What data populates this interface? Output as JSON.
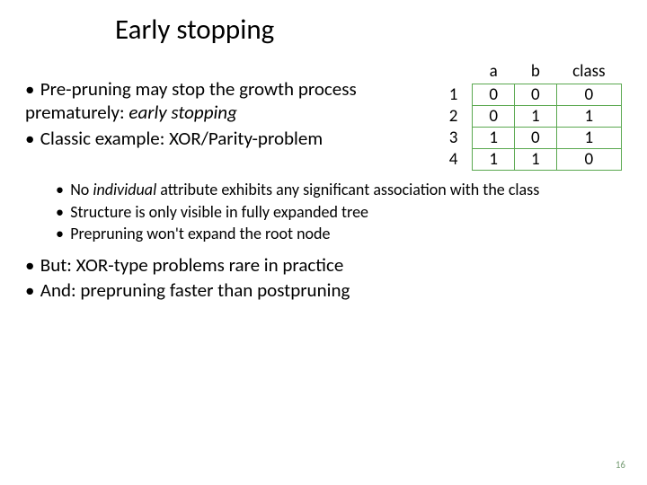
{
  "title": "Early stopping",
  "bullets_top": [
    {
      "text": "Pre-pruning may stop the growth process prematurely: ",
      "italic_suffix": "early stopping"
    },
    {
      "text": "Classic example: XOR/Parity-problem"
    }
  ],
  "table": {
    "columns": [
      "a",
      "b",
      "class"
    ],
    "row_labels": [
      "1",
      "2",
      "3",
      "4"
    ],
    "rows": [
      [
        "0",
        "0",
        "0"
      ],
      [
        "0",
        "1",
        "1"
      ],
      [
        "1",
        "0",
        "1"
      ],
      [
        "1",
        "1",
        "0"
      ]
    ],
    "border_color": "#5aa84f",
    "cell_bg": "#ffffff",
    "font_size": 19
  },
  "sub_bullets": [
    {
      "pre": "No ",
      "italic": "individual",
      "post": " attribute exhibits any significant association with the class"
    },
    {
      "pre": "Structure is only visible in fully expanded tree",
      "italic": "",
      "post": ""
    },
    {
      "pre": "Prepruning won't expand the root node",
      "italic": "",
      "post": ""
    }
  ],
  "bullets_lower": [
    "But: XOR-type problems rare in practice",
    "And: prepruning faster than postpruning"
  ],
  "page_number": "16",
  "colors": {
    "text": "#000000",
    "background": "#ffffff",
    "table_border": "#5aa84f",
    "page_num": "#7a9f78"
  }
}
